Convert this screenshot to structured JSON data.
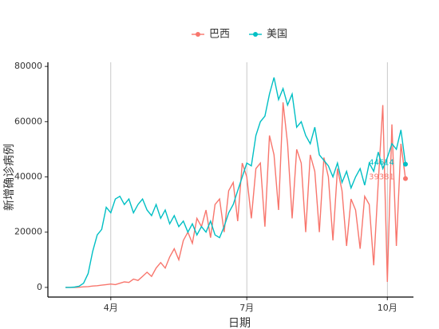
{
  "chart_data": {
    "type": "line",
    "legend_position": "top",
    "x_label": "日期",
    "y_label": "新增确诊病例",
    "categories": [
      null,
      null,
      null,
      null,
      null,
      null,
      null,
      null,
      null,
      null,
      "4月",
      null,
      null,
      null,
      null,
      null,
      null,
      null,
      null,
      null,
      null,
      null,
      null,
      null,
      null,
      null,
      null,
      null,
      null,
      null,
      null,
      null,
      null,
      null,
      null,
      null,
      null,
      null,
      null,
      null,
      "7月",
      null,
      null,
      null,
      null,
      null,
      null,
      null,
      null,
      null,
      null,
      null,
      null,
      null,
      null,
      null,
      null,
      null,
      null,
      null,
      null,
      null,
      null,
      null,
      null,
      null,
      null,
      null,
      null,
      null,
      null,
      "10月",
      null,
      null,
      null,
      null
    ],
    "series": [
      {
        "name": "巴西",
        "color": "#F8766D",
        "values": [
          0,
          0,
          0,
          50,
          200,
          300,
          500,
          600,
          800,
          1000,
          1200,
          1000,
          1500,
          2000,
          1800,
          3000,
          2500,
          4000,
          5500,
          4000,
          7000,
          9000,
          7000,
          11000,
          14000,
          10000,
          17000,
          20000,
          16000,
          25000,
          22000,
          28000,
          18000,
          30000,
          32000,
          20000,
          35000,
          38000,
          24000,
          45000,
          40000,
          25000,
          43000,
          45000,
          22000,
          55000,
          48000,
          28000,
          67000,
          52000,
          25000,
          50000,
          45000,
          20000,
          48000,
          42000,
          20000,
          47000,
          40000,
          17000,
          43000,
          35000,
          15000,
          32000,
          28000,
          14000,
          33000,
          30000,
          8000,
          38000,
          66000,
          2000,
          59000,
          15000,
          52000,
          39381
        ]
      },
      {
        "name": "美国",
        "color": "#00BFC4",
        "values": [
          0,
          0,
          100,
          400,
          1500,
          5000,
          13000,
          19000,
          21000,
          29000,
          27000,
          32000,
          33000,
          30000,
          32000,
          27000,
          30000,
          32000,
          28000,
          26000,
          30000,
          25000,
          28000,
          23000,
          26000,
          22000,
          24000,
          20000,
          23000,
          19000,
          22000,
          20000,
          24000,
          19000,
          18000,
          22000,
          27000,
          30000,
          35000,
          40000,
          45000,
          44000,
          55000,
          60000,
          62000,
          70000,
          76000,
          68000,
          72000,
          66000,
          70000,
          58000,
          60000,
          55000,
          52000,
          58000,
          48000,
          46000,
          44000,
          40000,
          45000,
          38000,
          42000,
          36000,
          40000,
          43000,
          37000,
          45000,
          42000,
          49000,
          43000,
          47000,
          52000,
          50000,
          57000,
          44614
        ]
      }
    ],
    "ylim": [
      -3500,
      81500
    ],
    "yticks": [
      0,
      20000,
      40000,
      60000,
      80000
    ],
    "x_grid": true
  }
}
